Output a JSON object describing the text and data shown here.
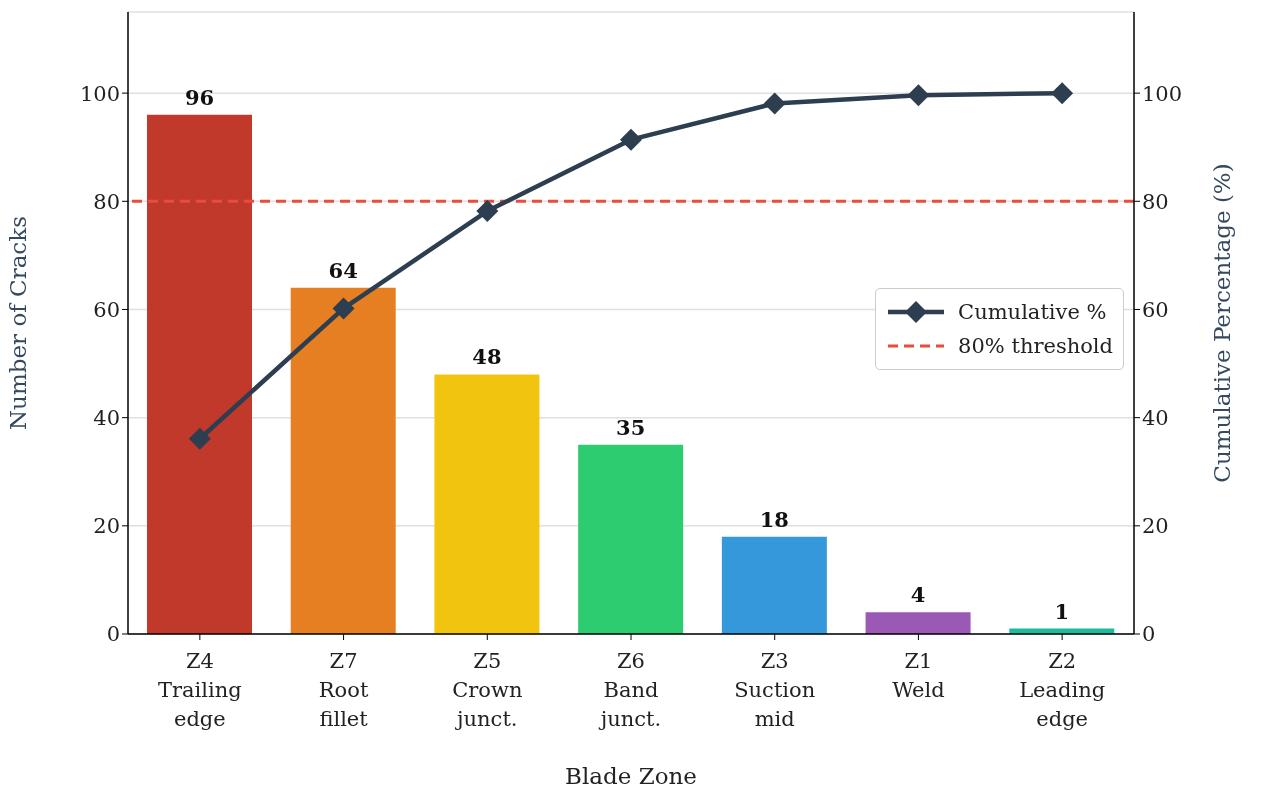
{
  "chart_data": {
    "type": "bar",
    "xlabel": "Blade Zone",
    "ylabel": "Number of Cracks",
    "y2label": "Cumulative Percentage (%)",
    "categories": [
      "Z4\nTrailing\nedge",
      "Z7\nRoot\nfillet",
      "Z5\nCrown\njunct.",
      "Z6\nBand\njunct.",
      "Z3\nSuction\nmid",
      "Z1\nWeld",
      "Z2\nLeading\nedge"
    ],
    "series": [
      {
        "colors": [
          "#c0392b",
          "#e67e22",
          "#f1c40f",
          "#2ecc71",
          "#3498db",
          "#9b59b6",
          "#1abc9c"
        ],
        "values": [
          96,
          64,
          48,
          35,
          18,
          4,
          1
        ],
        "data_labels": true
      },
      {
        "type": "line",
        "name": "Cumulative %",
        "color": "#2c3e50",
        "marker": "diamond",
        "line_style": "solid",
        "values": [
          36.1,
          60.2,
          78.2,
          91.4,
          98.1,
          99.6,
          100
        ]
      }
    ],
    "ref_lines": [
      {
        "axis": "y2",
        "value": 80,
        "label": "80% threshold",
        "color": "#e74c3c",
        "line_style": "dashed"
      }
    ],
    "ylim": [
      0,
      115
    ],
    "yticks": [
      0,
      20,
      40,
      60,
      80,
      100
    ],
    "y2lim": [
      0,
      115
    ],
    "y2ticks": [
      0,
      20,
      40,
      60,
      80,
      100
    ],
    "grid": "y",
    "legend": "right"
  }
}
